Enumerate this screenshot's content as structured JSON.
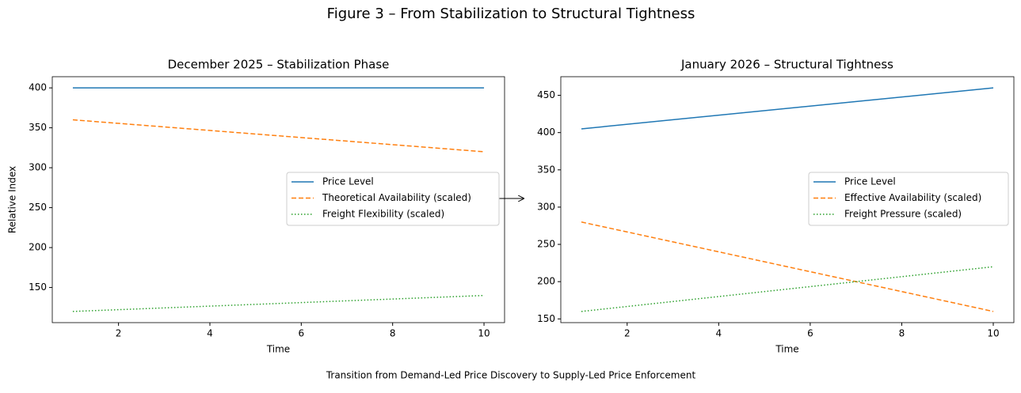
{
  "title": "Figure 3 – From Stabilization to Structural Tightness",
  "caption": "Transition from Demand-Led Price Discovery to Supply-Led Price Enforcement",
  "chart_data": [
    {
      "type": "line",
      "title": "December 2025 – Stabilization Phase",
      "x_label": "Time",
      "y_label": "Relative Index",
      "x": [
        1,
        10
      ],
      "xlim": [
        0.55,
        10.45
      ],
      "ylim": [
        106,
        414
      ],
      "xticks": [
        2,
        4,
        6,
        8,
        10
      ],
      "yticks": [
        150,
        200,
        250,
        300,
        350,
        400
      ],
      "legend": "center right",
      "series": [
        {
          "name": "Price Level",
          "color": "#1f77b4",
          "linestyle": "solid",
          "values": [
            400,
            400
          ]
        },
        {
          "name": "Theoretical Availability (scaled)",
          "color": "#ff7f0e",
          "linestyle": "dashed",
          "values": [
            360,
            320
          ]
        },
        {
          "name": "Freight Flexibility (scaled)",
          "color": "#2ca02c",
          "linestyle": "dotted",
          "values": [
            120,
            140
          ]
        }
      ]
    },
    {
      "type": "line",
      "title": "January 2026 – Structural Tightness",
      "x_label": "Time",
      "x": [
        1,
        10
      ],
      "xlim": [
        0.55,
        10.45
      ],
      "ylim": [
        145,
        475
      ],
      "xticks": [
        2,
        4,
        6,
        8,
        10
      ],
      "yticks": [
        150,
        200,
        250,
        300,
        350,
        400,
        450
      ],
      "legend": "center right",
      "series": [
        {
          "name": "Price Level",
          "color": "#1f77b4",
          "linestyle": "solid",
          "values": [
            405,
            460
          ]
        },
        {
          "name": "Effective Availability (scaled)",
          "color": "#ff7f0e",
          "linestyle": "dashed",
          "values": [
            280,
            160
          ]
        },
        {
          "name": "Freight Pressure (scaled)",
          "color": "#2ca02c",
          "linestyle": "dotted",
          "values": [
            160,
            220
          ]
        }
      ]
    }
  ]
}
